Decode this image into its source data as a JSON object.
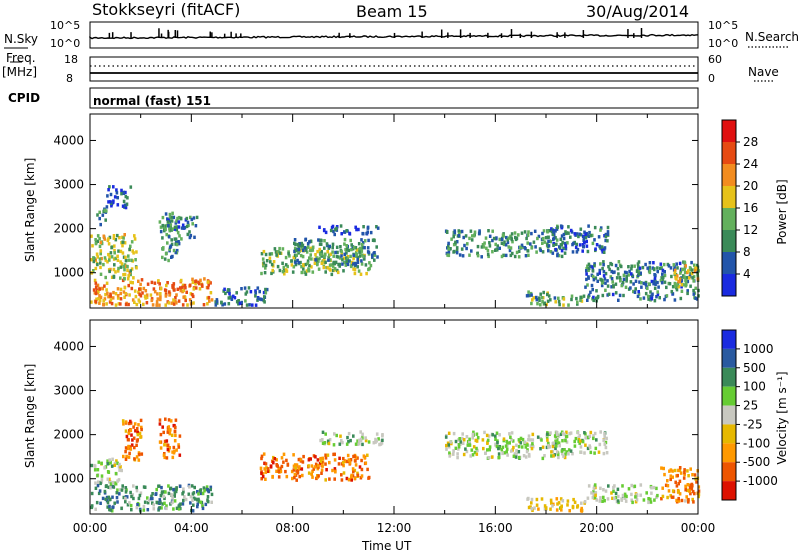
{
  "header": {
    "title": "Stokkseyri (fitACF)",
    "beam": "Beam 15",
    "date": "30/Aug/2014"
  },
  "panels": {
    "nsky_label": "N.Sky",
    "nsearch_label": "N.Search",
    "freq_label_1": "Freq.",
    "freq_label_2": "[MHz]",
    "nave_label": "Nave",
    "cpid_label": "CPID",
    "cpid_value": "normal (fast) 151",
    "nsky_ticks": [
      "10^5",
      "10^0"
    ],
    "nsearch_ticks": [
      "10^5",
      "10^0"
    ],
    "freq_ticks": [
      "18",
      "8"
    ],
    "nave_ticks": [
      "60",
      "0"
    ]
  },
  "colors": {
    "power_scale": [
      "#1a2be0",
      "#2255aa",
      "#3a8a58",
      "#63b05c",
      "#e6c21a",
      "#f28c1f",
      "#e64a12",
      "#e01010"
    ],
    "velocity_scale": [
      "#1a2be0",
      "#2a5aa0",
      "#3a8a58",
      "#66cc33",
      "#c8c8c0",
      "#e6b800",
      "#ff9900",
      "#ee5500",
      "#dd1100"
    ],
    "ground_scatter": "#bebeb4"
  },
  "chart_data": [
    {
      "type": "heatmap",
      "name": "power",
      "ylabel": "Slant Range [km]",
      "y_ticks": [
        "1000",
        "2000",
        "3000",
        "4000"
      ],
      "ylim": [
        200,
        4600
      ],
      "xlim": [
        0,
        24
      ],
      "colorbar_label": "Power [dB]",
      "colorbar_ticks": [
        "4",
        "8",
        "12",
        "16",
        "20",
        "24",
        "28"
      ],
      "colorbar_range": [
        0,
        32
      ],
      "regions": [
        {
          "t0": 0.0,
          "t1": 4.8,
          "r0": 300,
          "r1": 900,
          "v": 22
        },
        {
          "t0": 0.0,
          "t1": 1.8,
          "r0": 900,
          "r1": 1900,
          "v": 15
        },
        {
          "t0": 0.2,
          "t1": 0.6,
          "r0": 2100,
          "r1": 2500,
          "v": 10
        },
        {
          "t0": 0.6,
          "t1": 1.6,
          "r0": 2500,
          "r1": 3000,
          "v": 6
        },
        {
          "t0": 2.7,
          "t1": 3.5,
          "r0": 1300,
          "r1": 2400,
          "v": 10
        },
        {
          "t0": 3.0,
          "t1": 4.2,
          "r0": 1800,
          "r1": 2300,
          "v": 8
        },
        {
          "t0": 4.8,
          "t1": 7.0,
          "r0": 300,
          "r1": 700,
          "v": 7
        },
        {
          "t0": 6.7,
          "t1": 11.0,
          "r0": 1000,
          "r1": 1600,
          "v": 14
        },
        {
          "t0": 8.0,
          "t1": 11.3,
          "r0": 1200,
          "r1": 1800,
          "v": 10
        },
        {
          "t0": 9.0,
          "t1": 11.5,
          "r0": 1900,
          "r1": 2100,
          "v": 5
        },
        {
          "t0": 14.0,
          "t1": 18.8,
          "r0": 1400,
          "r1": 2000,
          "v": 10
        },
        {
          "t0": 18.0,
          "t1": 20.4,
          "r0": 1500,
          "r1": 2100,
          "v": 7
        },
        {
          "t0": 17.2,
          "t1": 19.5,
          "r0": 300,
          "r1": 600,
          "v": 13
        },
        {
          "t0": 19.5,
          "t1": 24.0,
          "r0": 400,
          "r1": 1300,
          "v": 9
        },
        {
          "t0": 23.0,
          "t1": 24.0,
          "r0": 700,
          "r1": 1200,
          "v": 18
        }
      ]
    },
    {
      "type": "heatmap",
      "name": "velocity",
      "ylabel": "Slant Range [km]",
      "y_ticks": [
        "1000",
        "2000",
        "3000",
        "4000"
      ],
      "ylim": [
        200,
        4600
      ],
      "xlim": [
        0,
        24
      ],
      "xlabel": "Time UT",
      "x_ticks": [
        "00:00",
        "04:00",
        "08:00",
        "12:00",
        "16:00",
        "20:00",
        "00:00"
      ],
      "colorbar_label": "Velocity [m s⁻¹]",
      "colorbar_ticks": [
        "1000",
        "500",
        "100",
        "25",
        "-25",
        "-100",
        "-500",
        "-1000"
      ],
      "regions": [
        {
          "t0": 0.0,
          "t1": 4.8,
          "r0": 300,
          "r1": 900,
          "v": 60
        },
        {
          "t0": 0.0,
          "t1": 1.2,
          "r0": 900,
          "r1": 1500,
          "v": 0
        },
        {
          "t0": 1.2,
          "t1": 2.0,
          "r0": 1400,
          "r1": 2400,
          "v": -300
        },
        {
          "t0": 2.7,
          "t1": 3.5,
          "r0": 1500,
          "r1": 2400,
          "v": -300
        },
        {
          "t0": 6.7,
          "t1": 11.0,
          "r0": 1000,
          "r1": 1600,
          "v": -300
        },
        {
          "t0": 9.0,
          "t1": 11.5,
          "r0": 1800,
          "r1": 2100,
          "v": 0
        },
        {
          "t0": 14.0,
          "t1": 18.8,
          "r0": 1500,
          "r1": 2100,
          "v": 0
        },
        {
          "t0": 18.0,
          "t1": 20.4,
          "r0": 1600,
          "r1": 2100,
          "v": 0
        },
        {
          "t0": 17.2,
          "t1": 19.5,
          "r0": 300,
          "r1": 600,
          "v": -60
        },
        {
          "t0": 19.5,
          "t1": 22.5,
          "r0": 500,
          "r1": 900,
          "v": 0
        },
        {
          "t0": 22.5,
          "t1": 24.0,
          "r0": 500,
          "r1": 1300,
          "v": -200
        }
      ]
    }
  ]
}
